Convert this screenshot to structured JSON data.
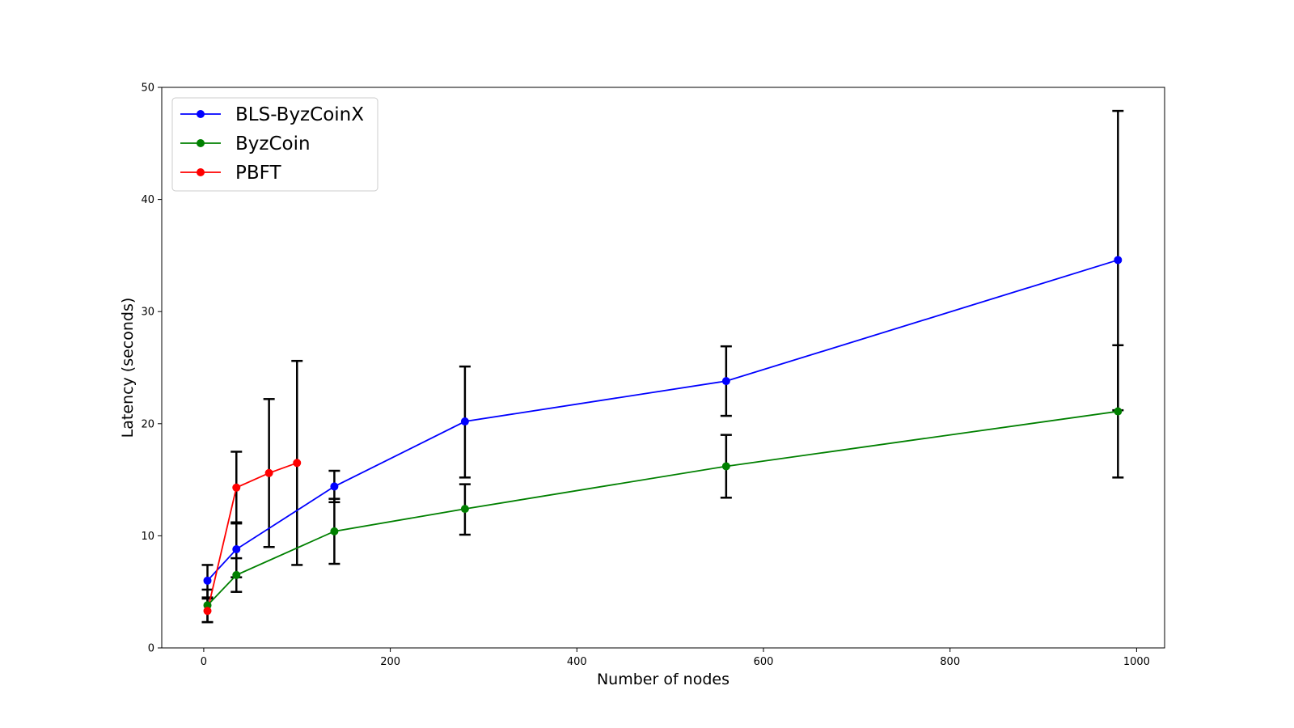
{
  "chart_data": {
    "type": "line",
    "title": "",
    "xlabel": "Number of nodes",
    "ylabel": "Latency (seconds)",
    "xlim": [
      -45,
      1030
    ],
    "ylim": [
      0,
      50
    ],
    "x_ticks": [
      0,
      200,
      400,
      600,
      800,
      1000
    ],
    "y_ticks": [
      0,
      10,
      20,
      30,
      40,
      50
    ],
    "grid": false,
    "legend_position": "top-left",
    "error_bars": true,
    "series": [
      {
        "name": "BLS-ByzCoinX",
        "color": "#0000ff",
        "points": [
          {
            "x": 4,
            "y": 6.0,
            "low": 4.5,
            "high": 7.4
          },
          {
            "x": 35,
            "y": 8.8,
            "low": 6.3,
            "high": 11.2
          },
          {
            "x": 140,
            "y": 14.4,
            "low": 13.0,
            "high": 15.8
          },
          {
            "x": 280,
            "y": 20.2,
            "low": 15.2,
            "high": 25.1
          },
          {
            "x": 560,
            "y": 23.8,
            "low": 20.7,
            "high": 26.9
          },
          {
            "x": 980,
            "y": 34.6,
            "low": 21.2,
            "high": 47.9
          }
        ]
      },
      {
        "name": "ByzCoin",
        "color": "#008000",
        "points": [
          {
            "x": 4,
            "y": 3.8,
            "low": 2.3,
            "high": 5.2
          },
          {
            "x": 35,
            "y": 6.5,
            "low": 5.0,
            "high": 8.0
          },
          {
            "x": 140,
            "y": 10.4,
            "low": 7.5,
            "high": 13.3
          },
          {
            "x": 280,
            "y": 12.4,
            "low": 10.1,
            "high": 14.6
          },
          {
            "x": 560,
            "y": 16.2,
            "low": 13.4,
            "high": 19.0
          },
          {
            "x": 980,
            "y": 21.1,
            "low": 15.2,
            "high": 27.0
          }
        ]
      },
      {
        "name": "PBFT",
        "color": "#ff0000",
        "points": [
          {
            "x": 4,
            "y": 3.3,
            "low": 2.3,
            "high": 4.4
          },
          {
            "x": 35,
            "y": 14.3,
            "low": 11.1,
            "high": 17.5
          },
          {
            "x": 70,
            "y": 15.6,
            "low": 9.0,
            "high": 22.2
          },
          {
            "x": 100,
            "y": 16.5,
            "low": 7.4,
            "high": 25.6
          }
        ]
      }
    ]
  }
}
